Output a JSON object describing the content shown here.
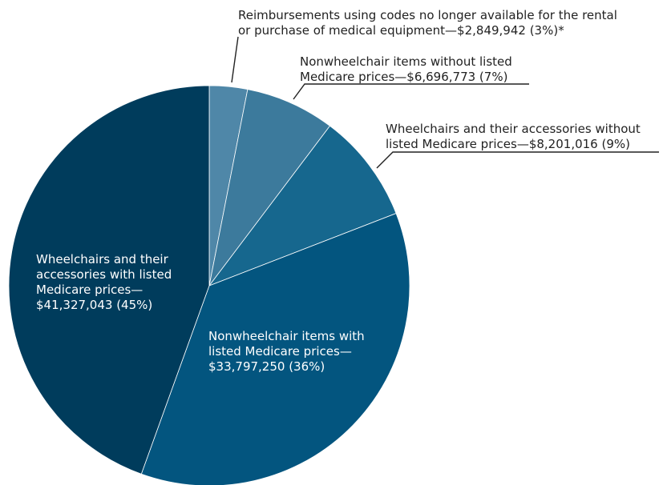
{
  "chart_data": {
    "type": "pie",
    "slices": [
      {
        "value": 2849942,
        "percent": 3,
        "color": "#4f87a8",
        "text_color": "#222222",
        "label_lines": [
          "Reimbursements using codes no longer available for the rental",
          "or purchase of medical equipment—$2,849,942 (3%)*"
        ]
      },
      {
        "value": 6696773,
        "percent": 7,
        "color": "#3c7a9c",
        "text_color": "#222222",
        "label_lines": [
          "Nonwheelchair items without listed",
          "Medicare prices—$6,696,773 (7%)"
        ]
      },
      {
        "value": 8201016,
        "percent": 9,
        "color": "#16678e",
        "text_color": "#222222",
        "label_lines": [
          "Wheelchairs and their accessories without",
          "listed Medicare prices—$8,201,016 (9%)"
        ]
      },
      {
        "value": 33797250,
        "percent": 36,
        "color": "#03557f",
        "text_color": "#ffffff",
        "label_lines": [
          "Nonwheelchair items with",
          "listed Medicare prices—",
          "$33,797,250 (36%)"
        ]
      },
      {
        "value": 41327043,
        "percent": 45,
        "color": "#003c5c",
        "text_color": "#ffffff",
        "label_lines": [
          "Wheelchairs and their",
          "accessories with listed",
          "Medicare prices—",
          "$41,327,043 (45%)"
        ]
      }
    ]
  }
}
